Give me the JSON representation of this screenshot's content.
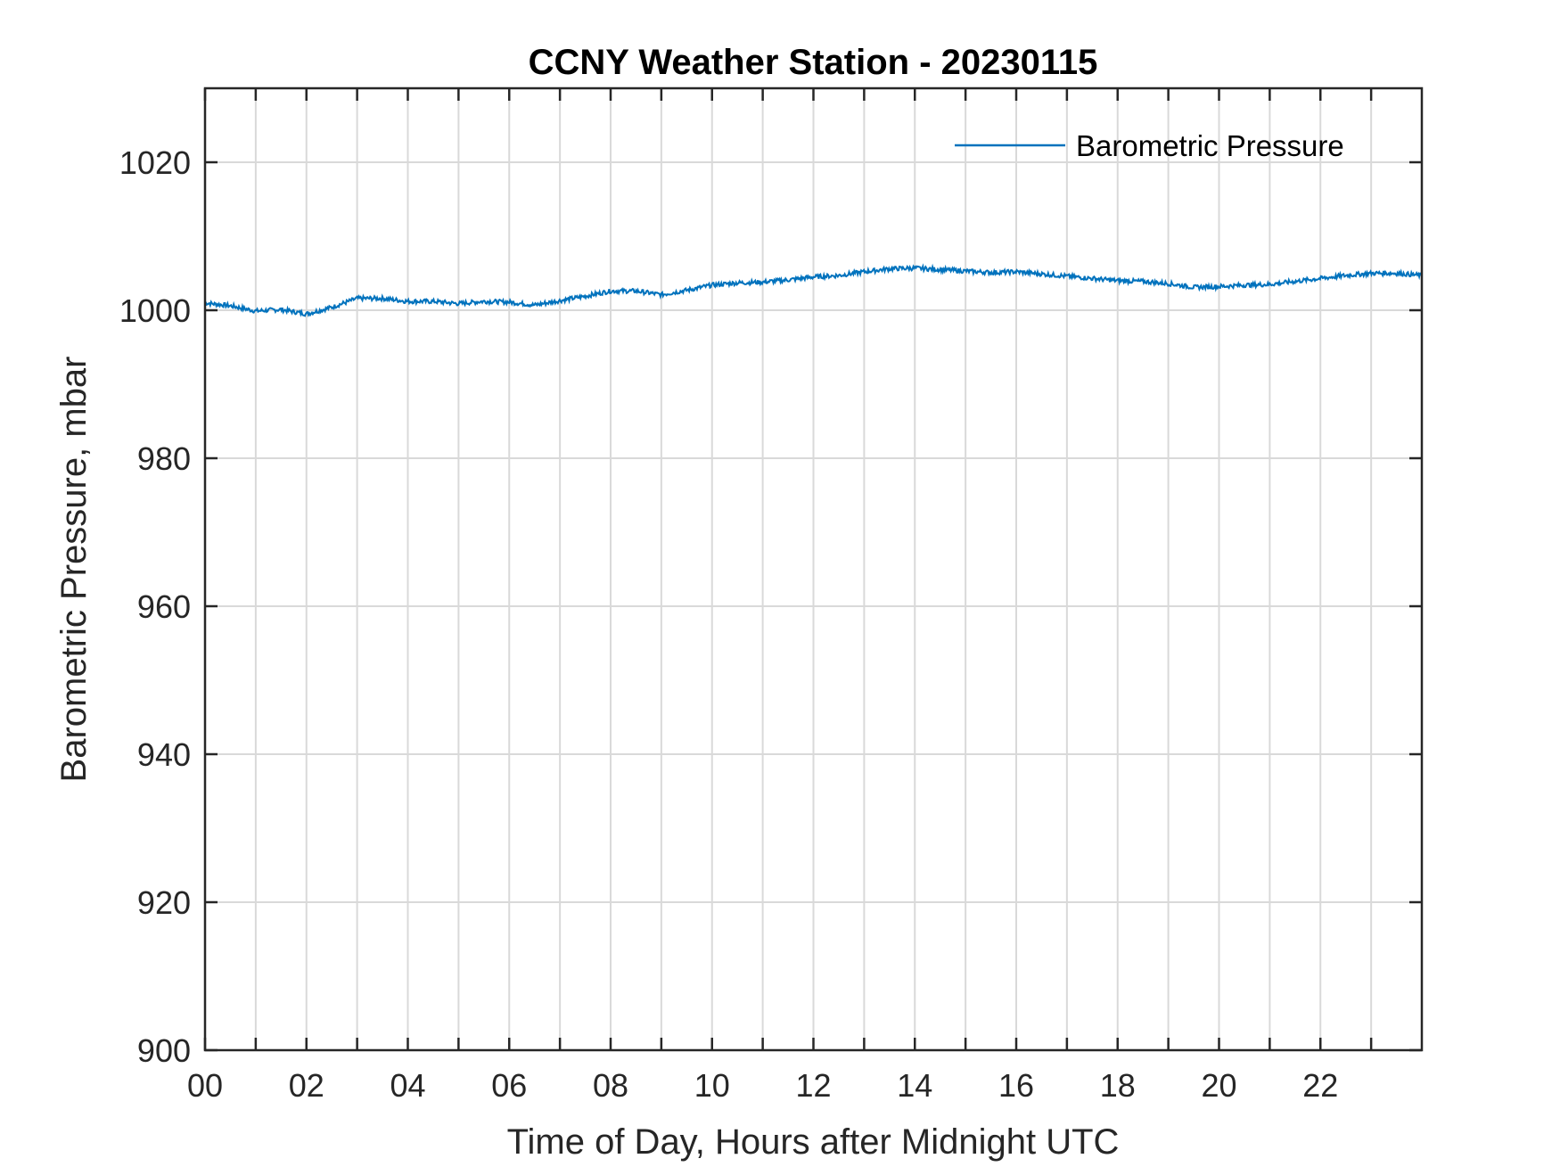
{
  "chart_data": {
    "type": "line",
    "title": "CCNY Weather Station - 20230115",
    "xlabel": "Time of Day, Hours after Midnight UTC",
    "ylabel": "Barometric Pressure, mbar",
    "xlim": [
      0,
      24
    ],
    "ylim": [
      900,
      1030
    ],
    "x_ticks": [
      0,
      2,
      4,
      6,
      8,
      10,
      12,
      14,
      16,
      18,
      20,
      22
    ],
    "x_tick_labels": [
      "00",
      "02",
      "04",
      "06",
      "08",
      "10",
      "12",
      "14",
      "16",
      "18",
      "20",
      "22"
    ],
    "x_grid": [
      0,
      1,
      2,
      3,
      4,
      5,
      6,
      7,
      8,
      9,
      10,
      11,
      12,
      13,
      14,
      15,
      16,
      17,
      18,
      19,
      20,
      21,
      22,
      23
    ],
    "y_ticks": [
      900,
      920,
      940,
      960,
      980,
      1000,
      1020
    ],
    "y_tick_labels": [
      "900",
      "920",
      "940",
      "960",
      "980",
      "1000",
      "1020"
    ],
    "grid": true,
    "legend": {
      "position": "top-right",
      "entries": [
        "Barometric Pressure"
      ]
    },
    "series": [
      {
        "name": "Barometric Pressure",
        "color": "#0072bd",
        "x": [
          0,
          0.5,
          1,
          1.5,
          2,
          2.5,
          3,
          3.5,
          4,
          4.5,
          5,
          5.5,
          6,
          6.5,
          7,
          7.5,
          8,
          8.5,
          9,
          9.5,
          10,
          10.5,
          11,
          11.5,
          12,
          12.5,
          13,
          13.5,
          14,
          14.5,
          15,
          15.5,
          16,
          16.5,
          17,
          17.5,
          18,
          18.5,
          19,
          19.5,
          20,
          20.5,
          21,
          21.5,
          22,
          22.5,
          23,
          23.5,
          24
        ],
        "y": [
          1001.0,
          1000.6,
          999.9,
          1000.1,
          999.5,
          1000.4,
          1001.6,
          1001.6,
          1001.2,
          1001.2,
          1000.9,
          1001.2,
          1001.1,
          1000.7,
          1001.3,
          1001.9,
          1002.6,
          1002.6,
          1002.1,
          1002.7,
          1003.4,
          1003.7,
          1003.8,
          1004.1,
          1004.5,
          1004.7,
          1005.2,
          1005.6,
          1005.7,
          1005.5,
          1005.3,
          1005.1,
          1005.2,
          1004.9,
          1004.6,
          1004.3,
          1004.0,
          1003.9,
          1003.6,
          1003.1,
          1003.2,
          1003.4,
          1003.5,
          1003.9,
          1004.3,
          1004.7,
          1005.0,
          1005.0,
          1004.7
        ]
      }
    ]
  }
}
